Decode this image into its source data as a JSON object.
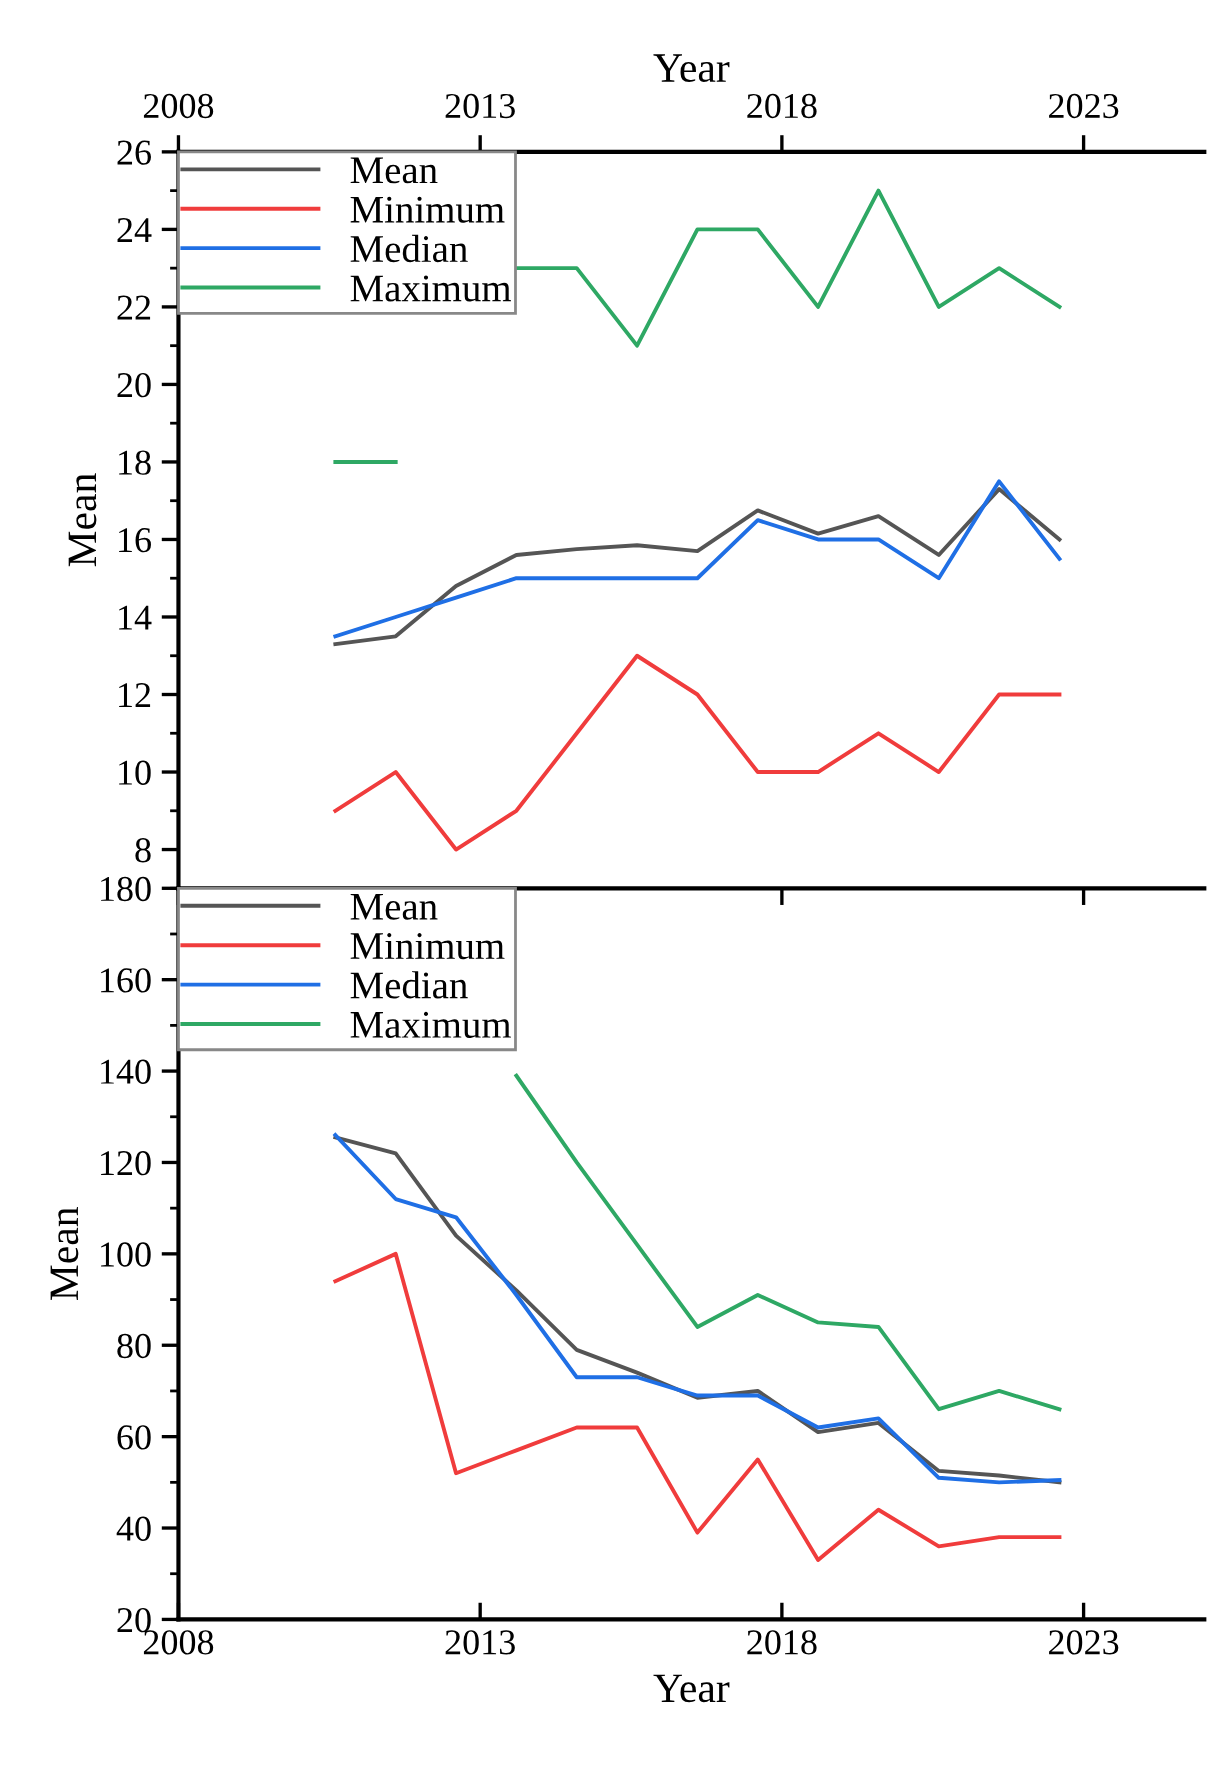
{
  "chart_data": [
    {
      "type": "line",
      "xlabel": "Year",
      "ylabel": "Mean",
      "xlim": [
        2008,
        2025
      ],
      "xticks": [
        2008,
        2013,
        2018,
        2023
      ],
      "ylim": [
        7,
        26
      ],
      "yticks": [
        8,
        10,
        12,
        14,
        16,
        18,
        20,
        22,
        24,
        26
      ],
      "tick_labels": "xy",
      "legend": "top left",
      "grid": false,
      "x": [
        2010.6,
        2011.6,
        2012.6,
        2013.6,
        2014.6,
        2015.6,
        2016.6,
        2017.6,
        2018.6,
        2019.6,
        2020.6,
        2021.6,
        2022.6
      ],
      "series": [
        {
          "name": "Mean",
          "color": "#555555",
          "values": [
            13.3,
            13.5,
            14.8,
            15.6,
            15.75,
            15.85,
            15.7,
            16.75,
            16.15,
            16.6,
            15.6,
            17.3,
            16.0
          ]
        },
        {
          "name": "Minimum",
          "color": "#f03c3c",
          "values": [
            9,
            10,
            8,
            9,
            11,
            13,
            12,
            10,
            10,
            11,
            10,
            12,
            12
          ]
        },
        {
          "name": "Median",
          "color": "#1f6fe5",
          "values": [
            13.5,
            14,
            14.5,
            15,
            15,
            15,
            15,
            16.5,
            16,
            16,
            15,
            17.5,
            15.5
          ]
        },
        {
          "name": "Maximum",
          "color": "#2ea864",
          "values": [
            18,
            18,
            null,
            23,
            23,
            21,
            24,
            24,
            22,
            25,
            22,
            23,
            22
          ]
        }
      ]
    },
    {
      "type": "line",
      "xlabel": "Year",
      "ylabel": "Mean",
      "xlim": [
        2008,
        2025
      ],
      "xticks": [
        2008,
        2013,
        2018,
        2023
      ],
      "ylim": [
        20,
        180
      ],
      "yticks": [
        20,
        40,
        60,
        80,
        100,
        120,
        140,
        160,
        180
      ],
      "legend": "top left",
      "grid": false,
      "x": [
        2010.6,
        2011.6,
        2012.6,
        2013.6,
        2014.6,
        2015.6,
        2016.6,
        2017.6,
        2018.6,
        2019.6,
        2020.6,
        2021.6,
        2022.6
      ],
      "series": [
        {
          "name": "Mean",
          "color": "#555555",
          "values": [
            125.5,
            122,
            104,
            92,
            79,
            74,
            68.5,
            70,
            61,
            63,
            52.5,
            51.5,
            50
          ]
        },
        {
          "name": "Minimum",
          "color": "#f03c3c",
          "values": [
            94,
            100,
            52,
            57,
            62,
            62,
            39,
            55,
            33,
            44,
            36,
            38,
            38
          ]
        },
        {
          "name": "Median",
          "color": "#1f6fe5",
          "values": [
            126,
            112,
            108,
            91,
            73,
            73,
            69,
            69,
            62,
            64,
            51,
            50,
            50.5
          ]
        },
        {
          "name": "Maximum",
          "color": "#2ea864",
          "values": [
            null,
            null,
            null,
            139,
            120,
            102,
            84,
            91,
            85,
            84,
            66,
            70,
            66
          ]
        }
      ]
    }
  ]
}
